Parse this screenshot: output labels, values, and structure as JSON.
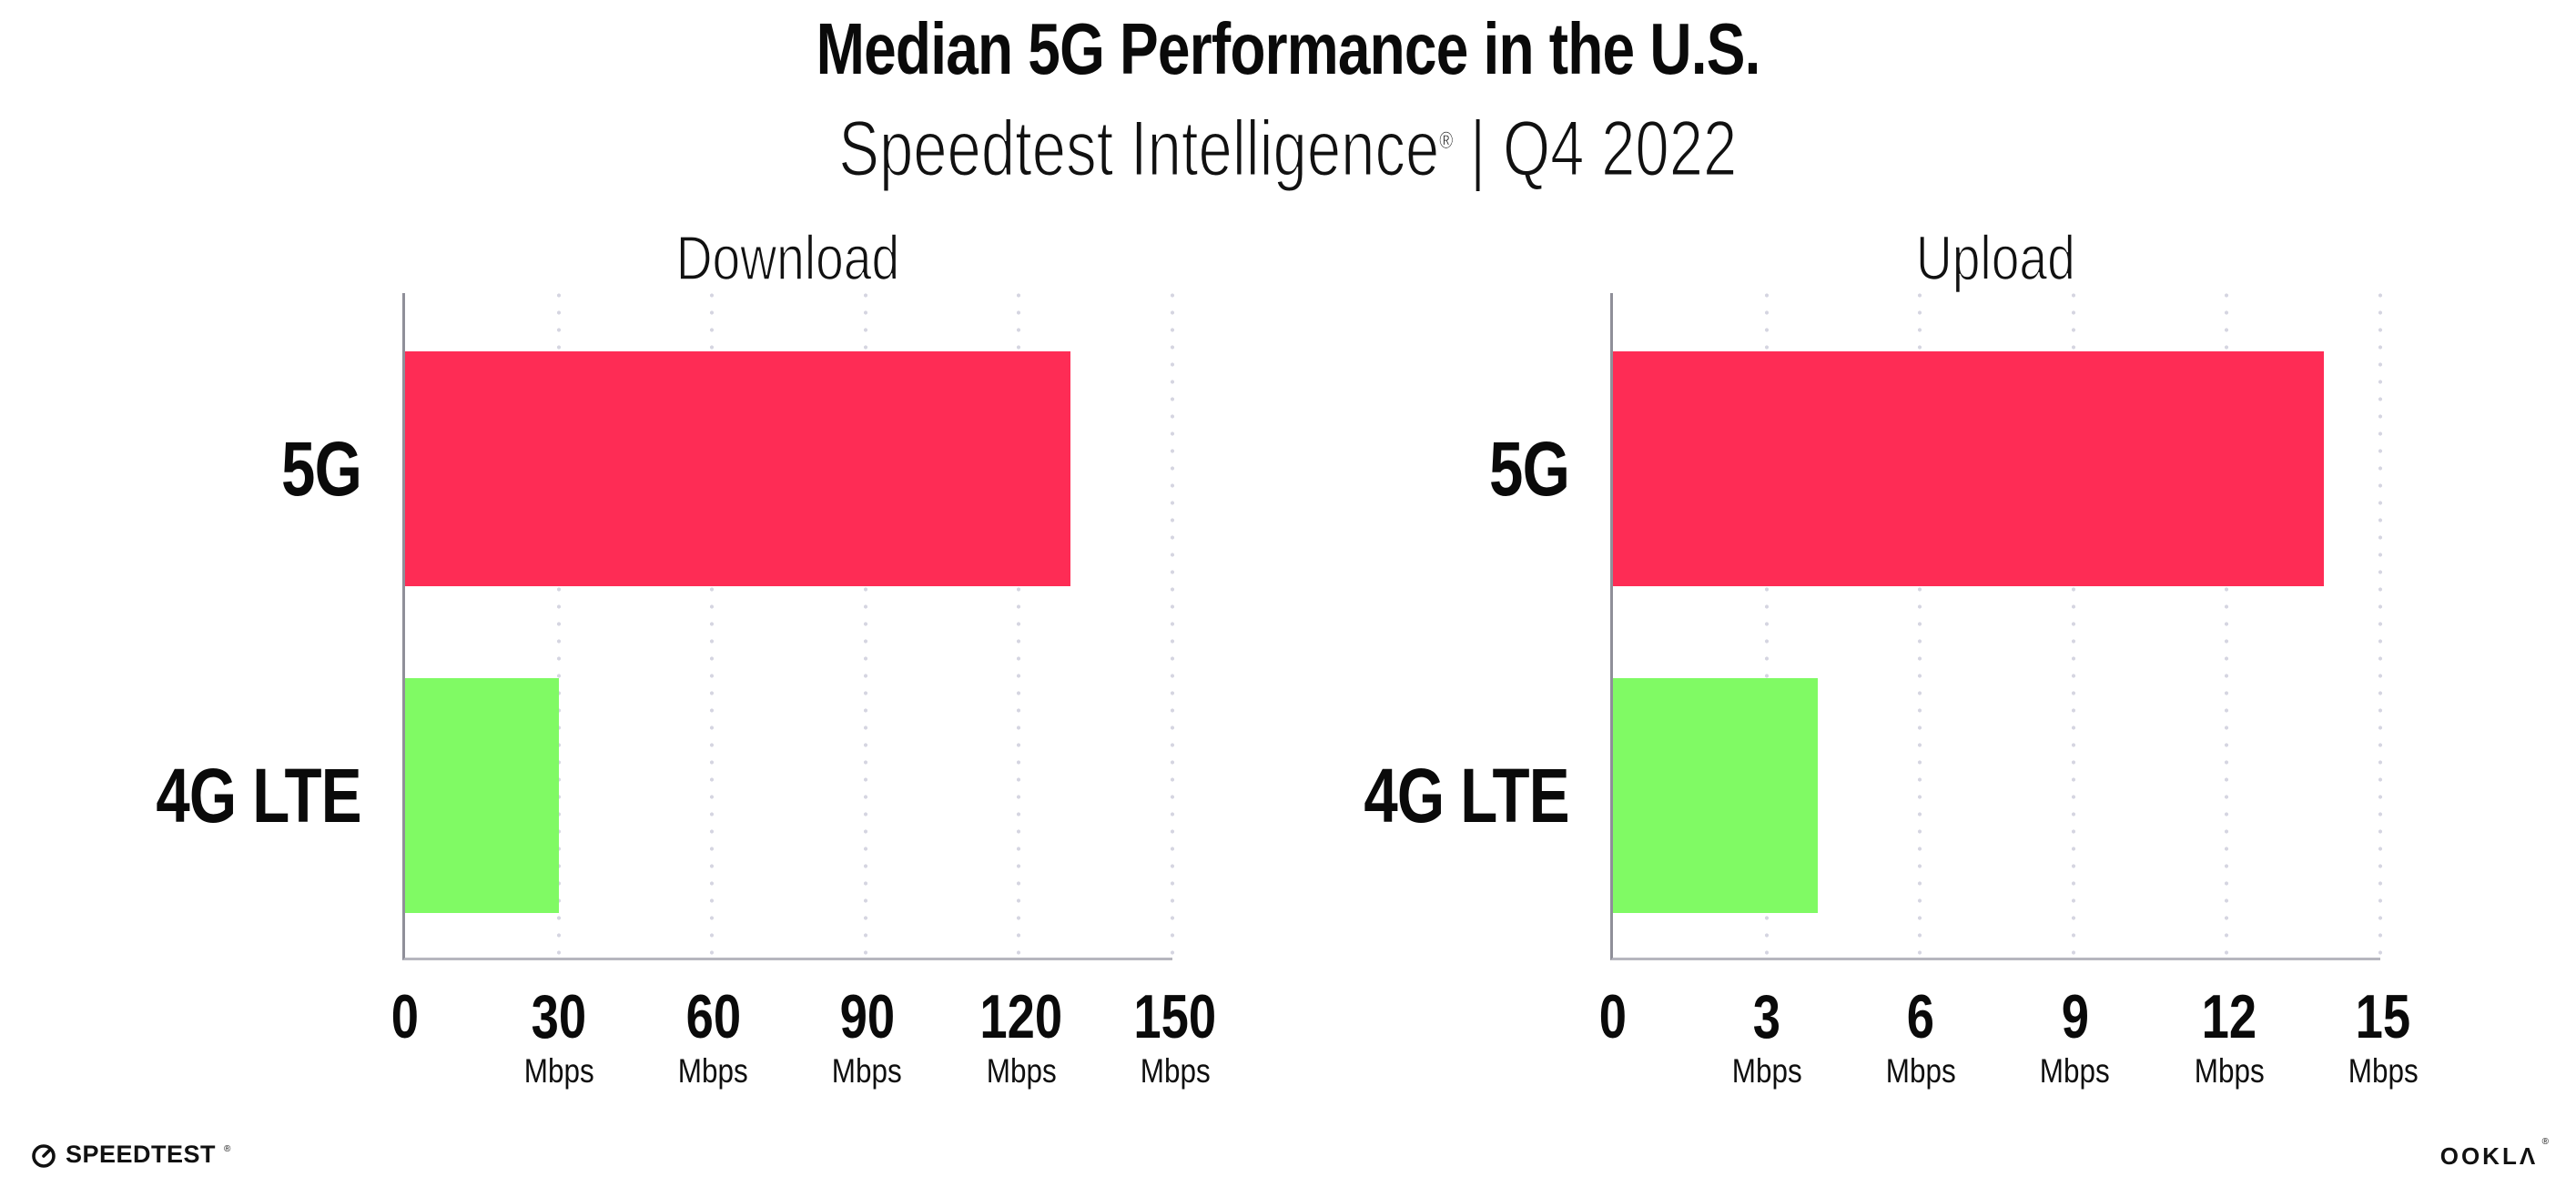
{
  "header": {
    "title": "Median 5G Performance in the U.S.",
    "subtitle_brand": "Speedtest Intelligence",
    "subtitle_reg": "®",
    "subtitle_rest": " | Q4 2022"
  },
  "colors": {
    "bar_5g": "#fe2c55",
    "bar_4g_lte": "#80fa64",
    "axis_y": "#8f8f99",
    "axis_x": "#b6b6be",
    "gridline_dots": "#d5d5e1",
    "text": "#0a0a0a"
  },
  "chart_data": [
    {
      "type": "bar",
      "orientation": "horizontal",
      "title": "Download",
      "categories": [
        "5G",
        "4G LTE"
      ],
      "values": [
        130,
        30
      ],
      "unit": "Mbps",
      "xlim": [
        0,
        150
      ],
      "xticks": [
        0,
        30,
        60,
        90,
        120,
        150
      ],
      "bar_colors": [
        "#fe2c55",
        "#80fa64"
      ],
      "grid": "vertical dotted at each tick",
      "legend": "none"
    },
    {
      "type": "bar",
      "orientation": "horizontal",
      "title": "Upload",
      "categories": [
        "5G",
        "4G LTE"
      ],
      "values": [
        13.9,
        4
      ],
      "unit": "Mbps",
      "xlim": [
        0,
        15
      ],
      "xticks": [
        0,
        3,
        6,
        9,
        12,
        15
      ],
      "bar_colors": [
        "#fe2c55",
        "#80fa64"
      ],
      "grid": "vertical dotted at each tick",
      "legend": "none"
    }
  ],
  "footer": {
    "speedtest_label": "SPEEDTEST",
    "speedtest_mark": "®",
    "ookla_label": "OOKLΛ",
    "ookla_mark": "®"
  }
}
